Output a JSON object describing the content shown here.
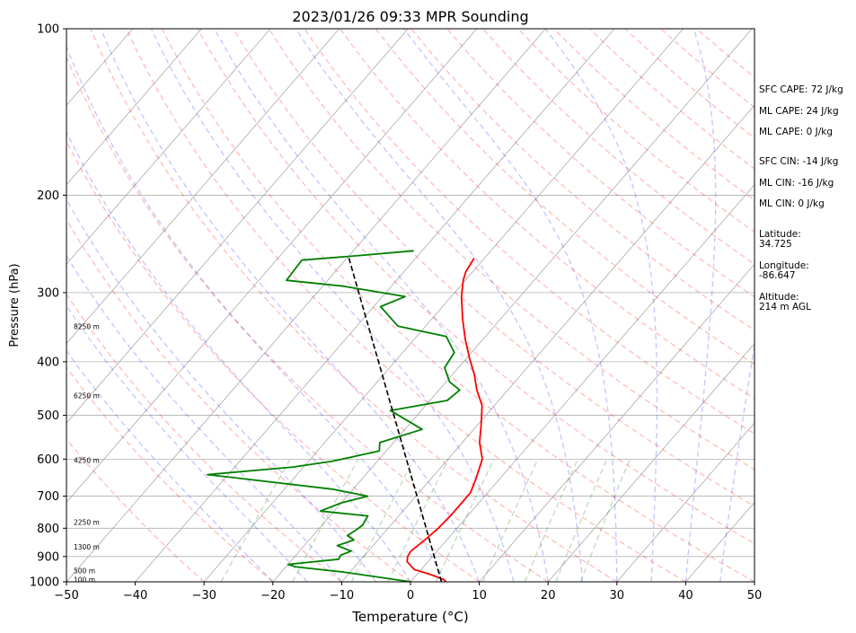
{
  "chart_data": {
    "type": "line",
    "title": "2023/01/26 09:33 MPR Sounding",
    "xlabel": "Temperature (°C)",
    "ylabel": "Pressure (hPa)",
    "xlim": [
      -50,
      50
    ],
    "ylim": [
      1000,
      100
    ],
    "y_scale": "log",
    "grid": true,
    "x_ticks": [
      -50,
      -40,
      -30,
      -20,
      -10,
      0,
      10,
      20,
      30,
      40,
      50
    ],
    "y_ticks": [
      100,
      200,
      300,
      400,
      500,
      600,
      700,
      800,
      900,
      1000
    ],
    "series": [
      {
        "color": "#ff0000",
        "points": [
          [
            5.2,
            1000
          ],
          [
            4.5,
            990
          ],
          [
            2,
            970
          ],
          [
            -1,
            950
          ],
          [
            -3,
            920
          ],
          [
            -3.6,
            900
          ],
          [
            -3.8,
            880
          ],
          [
            -3.5,
            860
          ],
          [
            -3.2,
            840
          ],
          [
            -2.7,
            800
          ],
          [
            -2.5,
            760
          ],
          [
            -2.5,
            720
          ],
          [
            -2.5,
            690
          ],
          [
            -3.5,
            650
          ],
          [
            -5,
            600
          ],
          [
            -7.5,
            560
          ],
          [
            -9.5,
            520
          ],
          [
            -11.8,
            480
          ],
          [
            -14.5,
            450
          ],
          [
            -17,
            420
          ],
          [
            -19.5,
            395
          ],
          [
            -22.5,
            365
          ],
          [
            -25.5,
            335
          ],
          [
            -28.5,
            305
          ],
          [
            -30.3,
            285
          ],
          [
            -31,
            275
          ],
          [
            -31.5,
            260
          ]
        ]
      },
      {
        "color": "#008000",
        "points": [
          [
            0,
            1000
          ],
          [
            -4,
            985
          ],
          [
            -11,
            960
          ],
          [
            -18.5,
            940
          ],
          [
            -20,
            930
          ],
          [
            -13.3,
            910
          ],
          [
            -13.5,
            895
          ],
          [
            -12.5,
            880
          ],
          [
            -15.2,
            860
          ],
          [
            -13.5,
            840
          ],
          [
            -15,
            825
          ],
          [
            -14.4,
            805
          ],
          [
            -14.1,
            790
          ],
          [
            -14.5,
            760
          ],
          [
            -22,
            745
          ],
          [
            -20,
            720
          ],
          [
            -17,
            700
          ],
          [
            -23,
            680
          ],
          [
            -43,
            640
          ],
          [
            -31.5,
            620
          ],
          [
            -26.5,
            605
          ],
          [
            -21,
            580
          ],
          [
            -22,
            560
          ],
          [
            -17.5,
            530
          ],
          [
            -24.5,
            490
          ],
          [
            -17.5,
            470
          ],
          [
            -17,
            450
          ],
          [
            -19.5,
            435
          ],
          [
            -22,
            410
          ],
          [
            -22.5,
            385
          ],
          [
            -25.7,
            360
          ],
          [
            -34,
            345
          ],
          [
            -39,
            318
          ],
          [
            -36.7,
            305
          ],
          [
            -47,
            292
          ],
          [
            -56,
            285
          ],
          [
            -56.3,
            262
          ],
          [
            -50,
            258
          ],
          [
            -41.2,
            252
          ]
        ]
      },
      {
        "color": "#000000",
        "dashed": true,
        "points": [
          [
            4.5,
            1000
          ],
          [
            -50,
            258
          ]
        ]
      }
    ],
    "height_labels": [
      {
        "label": "100 m",
        "p": 990
      },
      {
        "label": "500 m",
        "p": 955
      },
      {
        "label": "1300 m",
        "p": 865
      },
      {
        "label": "2250 m",
        "p": 780
      },
      {
        "label": "4250 m",
        "p": 603
      },
      {
        "label": "6250 m",
        "p": 460
      },
      {
        "label": "8250 m",
        "p": 345
      }
    ]
  },
  "indices": {
    "sfc_cape": "SFC CAPE: 72 J/kg",
    "ml_cape_1": "ML CAPE: 24 J/kg",
    "ml_cape_2": "ML CAPE: 0 J/kg",
    "sfc_cin": "SFC CIN: -14 J/kg",
    "ml_cin_1": "ML CIN: -16 J/kg",
    "ml_cin_2": "ML CIN: 0 J/kg",
    "latitude": "Latitude:\n34.725",
    "longitude": "Longitude:\n-86.647",
    "altitude": "Altitude:\n214 m AGL"
  }
}
